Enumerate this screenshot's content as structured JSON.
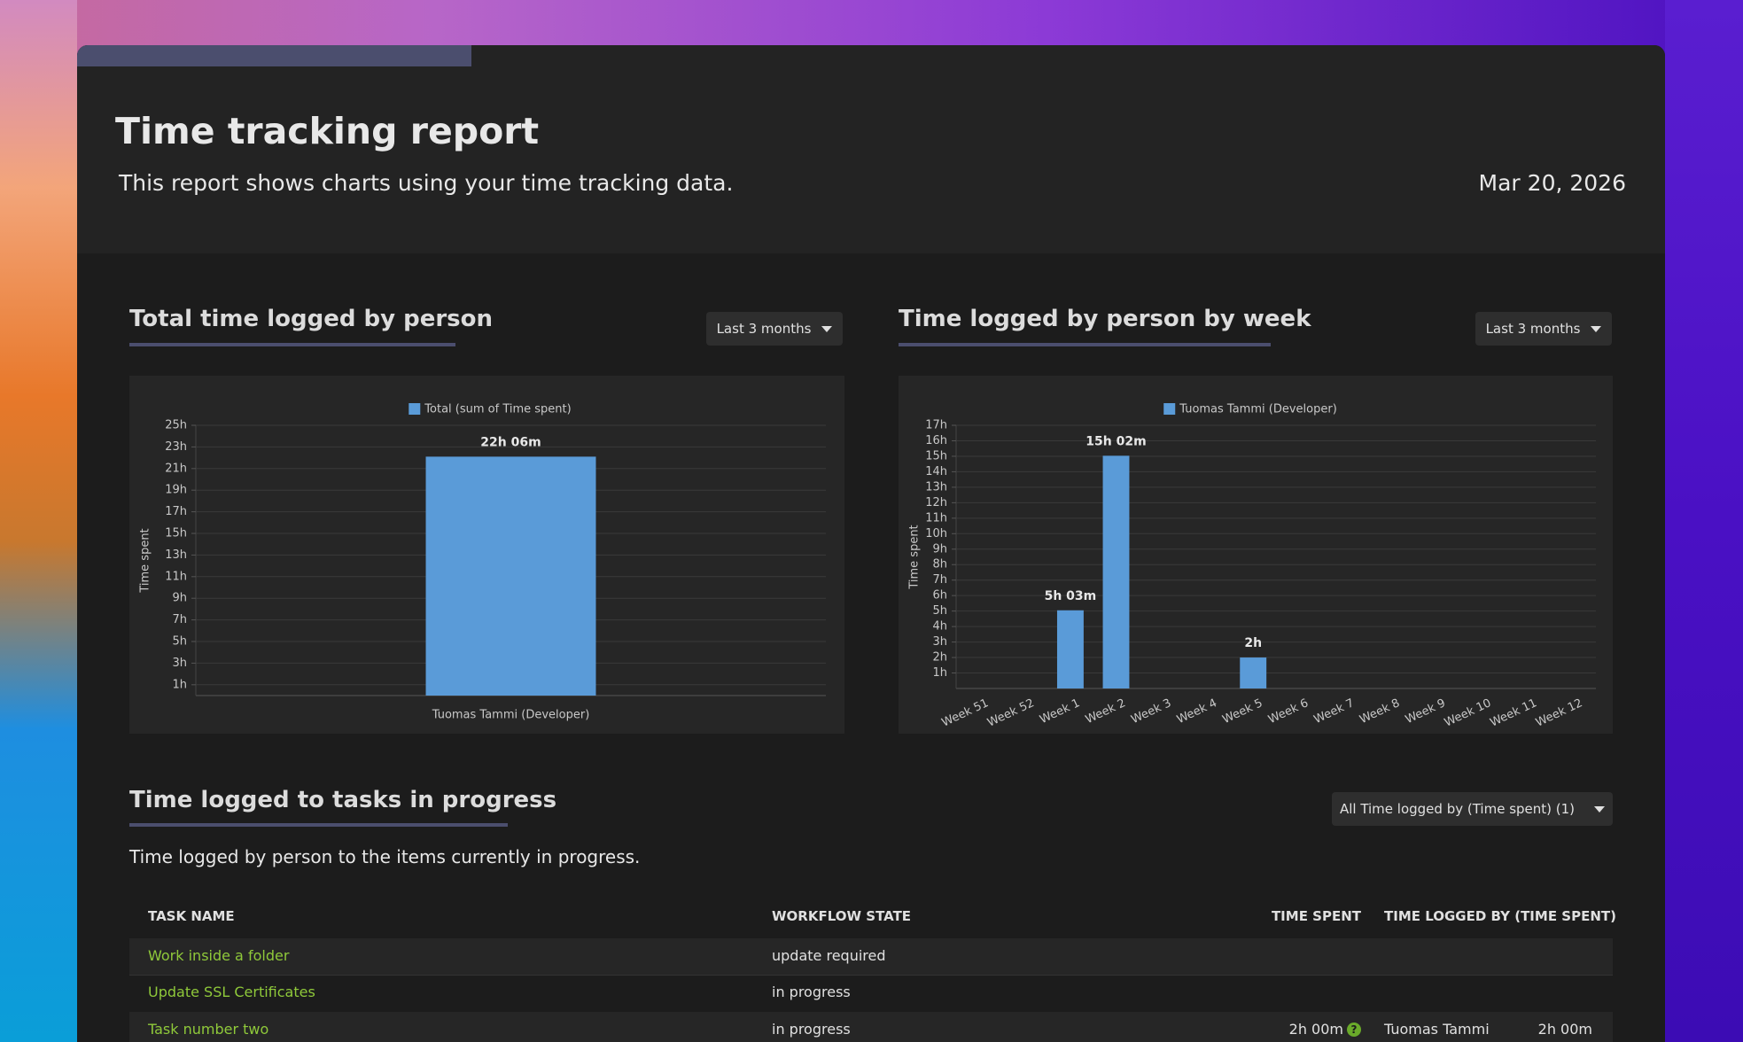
{
  "header": {
    "title": "Time tracking report",
    "subtitle": "This report shows charts using your time tracking data.",
    "date": "Mar 20, 2026"
  },
  "chart_data": [
    {
      "type": "bar",
      "title": "Total time logged by person",
      "filter": "Last 3 months",
      "y_label": "Time spent",
      "categories": [
        "Tuomas Tammi (Developer)"
      ],
      "series": [
        {
          "name": "Total (sum of Time spent)",
          "color": "#5a9bd8",
          "values": [
            22.1
          ],
          "value_labels": [
            "22h 06m"
          ]
        }
      ],
      "ylim": [
        0,
        25
      ],
      "yticks": [
        {
          "value": 1,
          "label": "1h"
        },
        {
          "value": 3,
          "label": "3h"
        },
        {
          "value": 5,
          "label": "5h"
        },
        {
          "value": 7,
          "label": "7h"
        },
        {
          "value": 9,
          "label": "9h"
        },
        {
          "value": 11,
          "label": "11h"
        },
        {
          "value": 13,
          "label": "13h"
        },
        {
          "value": 15,
          "label": "15h"
        },
        {
          "value": 17,
          "label": "17h"
        },
        {
          "value": 19,
          "label": "19h"
        },
        {
          "value": 21,
          "label": "21h"
        },
        {
          "value": 23,
          "label": "23h"
        },
        {
          "value": 25,
          "label": "25h"
        }
      ],
      "grid": true,
      "rotate_labels": false
    },
    {
      "type": "bar",
      "title": "Time logged by person by week",
      "filter": "Last 3 months",
      "y_label": "Time spent",
      "categories": [
        "Week 51",
        "Week 52",
        "Week 1",
        "Week 2",
        "Week 3",
        "Week 4",
        "Week 5",
        "Week 6",
        "Week 7",
        "Week 8",
        "Week 9",
        "Week 10",
        "Week 11",
        "Week 12"
      ],
      "series": [
        {
          "name": "Tuomas Tammi (Developer)",
          "color": "#5a9bd8",
          "values": [
            null,
            null,
            5.05,
            15.0333,
            null,
            null,
            2,
            null,
            null,
            null,
            null,
            null,
            null,
            null
          ],
          "value_labels": [
            null,
            null,
            "5h 03m",
            "15h 02m",
            null,
            null,
            "2h",
            null,
            null,
            null,
            null,
            null,
            null,
            null
          ]
        }
      ],
      "ylim": [
        0,
        17
      ],
      "yticks": [
        {
          "value": 1,
          "label": "1h"
        },
        {
          "value": 2,
          "label": "2h"
        },
        {
          "value": 3,
          "label": "3h"
        },
        {
          "value": 4,
          "label": "4h"
        },
        {
          "value": 5,
          "label": "5h"
        },
        {
          "value": 6,
          "label": "6h"
        },
        {
          "value": 7,
          "label": "7h"
        },
        {
          "value": 8,
          "label": "8h"
        },
        {
          "value": 9,
          "label": "9h"
        },
        {
          "value": 10,
          "label": "10h"
        },
        {
          "value": 11,
          "label": "11h"
        },
        {
          "value": 12,
          "label": "12h"
        },
        {
          "value": 13,
          "label": "13h"
        },
        {
          "value": 14,
          "label": "14h"
        },
        {
          "value": 15,
          "label": "15h"
        },
        {
          "value": 16,
          "label": "16h"
        },
        {
          "value": 17,
          "label": "17h"
        }
      ],
      "grid": true,
      "rotate_labels": true
    }
  ],
  "tasks": {
    "title": "Time logged to tasks in progress",
    "filter": "All Time logged by (Time spent) (1)",
    "description": "Time logged by person to the items currently in progress."
  },
  "table": {
    "columns": [
      "TASK NAME",
      "WORKFLOW STATE",
      "TIME SPENT",
      "TIME LOGGED BY (TIME SPENT)"
    ],
    "rows": [
      {
        "task": "Work inside a folder",
        "state": "update required"
      },
      {
        "task": "Update SSL Certificates",
        "state": "in progress"
      },
      {
        "task": "Task number two",
        "state": "in progress",
        "time_spent": "2h 00m",
        "logged_by": "Tuomas Tammi",
        "logged_time": "2h 00m"
      }
    ]
  }
}
